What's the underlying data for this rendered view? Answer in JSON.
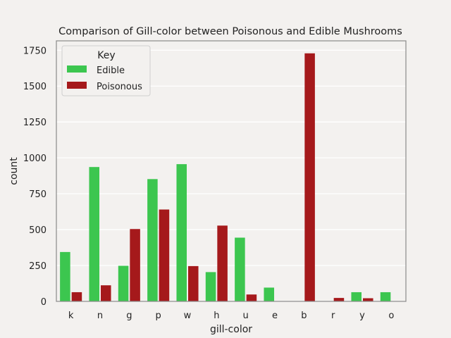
{
  "chart_data": {
    "type": "bar",
    "title": "Comparison of Gill-color between Poisonous and Edible Mushrooms",
    "xlabel": "gill-color",
    "ylabel": "count",
    "categories": [
      "k",
      "n",
      "g",
      "p",
      "w",
      "h",
      "u",
      "e",
      "b",
      "r",
      "y",
      "o"
    ],
    "series": [
      {
        "name": "Edible",
        "color": "#3cc64f",
        "values": [
          344,
          936,
          248,
          852,
          956,
          204,
          444,
          96,
          0,
          0,
          64,
          64
        ]
      },
      {
        "name": "Poisonous",
        "color": "#a5191b",
        "values": [
          64,
          112,
          504,
          640,
          246,
          528,
          48,
          0,
          1728,
          24,
          22,
          0
        ]
      }
    ],
    "ylim": [
      0,
      1815
    ],
    "yticks": [
      0,
      250,
      500,
      750,
      1000,
      1250,
      1500,
      1750
    ],
    "grid": true,
    "legend": {
      "title": "Key",
      "position": "top-left"
    }
  }
}
